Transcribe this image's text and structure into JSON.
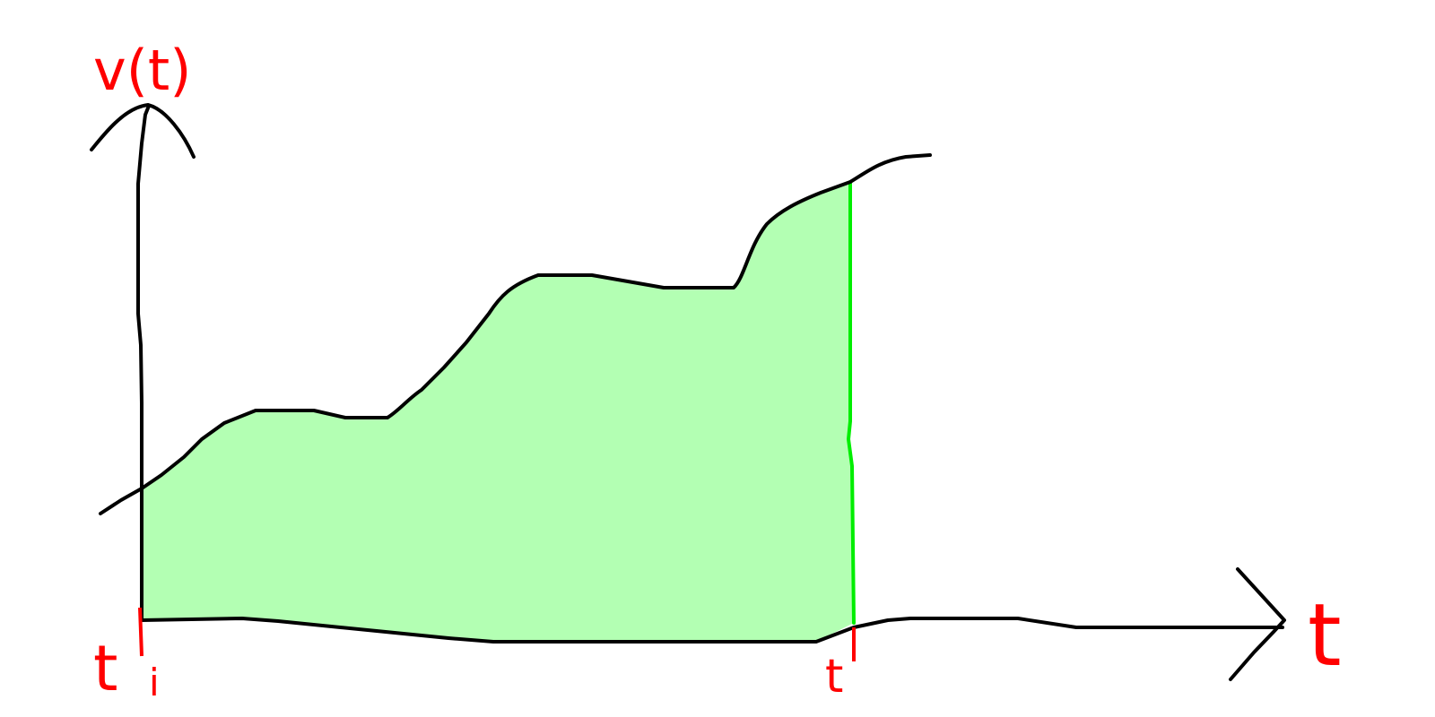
{
  "labels": {
    "y_axis": "v(t)",
    "x_axis": "t",
    "t_initial": "t",
    "t_initial_subscript": "i",
    "t_final": "t"
  },
  "colors": {
    "label": "#ff0000",
    "area_fill": "#b3ffb3",
    "boundary": "#00ee00",
    "ink": "#000000",
    "background": "#ffffff"
  }
}
